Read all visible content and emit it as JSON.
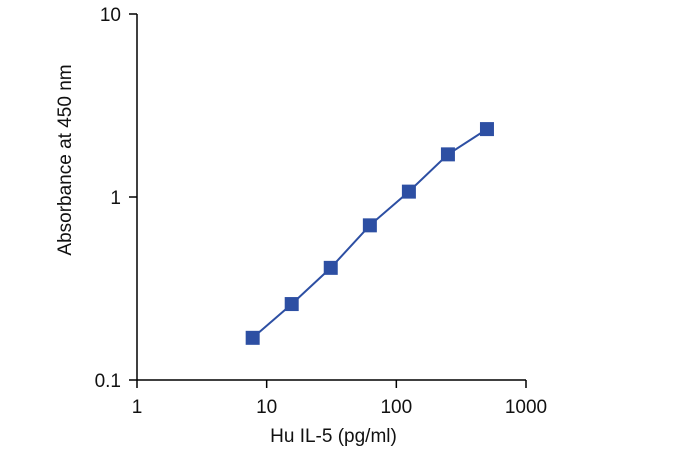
{
  "chart_data": {
    "type": "line",
    "title": "",
    "xlabel": "Hu IL-5 (pg/ml)",
    "ylabel": "Absorbance at 450 nm",
    "x_scale": "log",
    "y_scale": "log",
    "xlim": [
      1,
      1000
    ],
    "ylim": [
      0.1,
      10
    ],
    "x_ticks": [
      {
        "value": 1,
        "label": "1"
      },
      {
        "value": 10,
        "label": "10"
      },
      {
        "value": 100,
        "label": "100"
      },
      {
        "value": 1000,
        "label": "1000"
      }
    ],
    "y_ticks": [
      {
        "value": 0.1,
        "label": "0.1"
      },
      {
        "value": 1,
        "label": "1"
      },
      {
        "value": 10,
        "label": "10"
      }
    ],
    "grid": false,
    "legend": "none",
    "series": [
      {
        "color": "#2d4fa3",
        "marker": "square",
        "points": [
          {
            "x": 7.8,
            "y": 0.17
          },
          {
            "x": 15.6,
            "y": 0.26
          },
          {
            "x": 31.2,
            "y": 0.41
          },
          {
            "x": 62.5,
            "y": 0.7
          },
          {
            "x": 125,
            "y": 1.07
          },
          {
            "x": 250,
            "y": 1.71
          },
          {
            "x": 500,
            "y": 2.35
          }
        ]
      }
    ]
  }
}
